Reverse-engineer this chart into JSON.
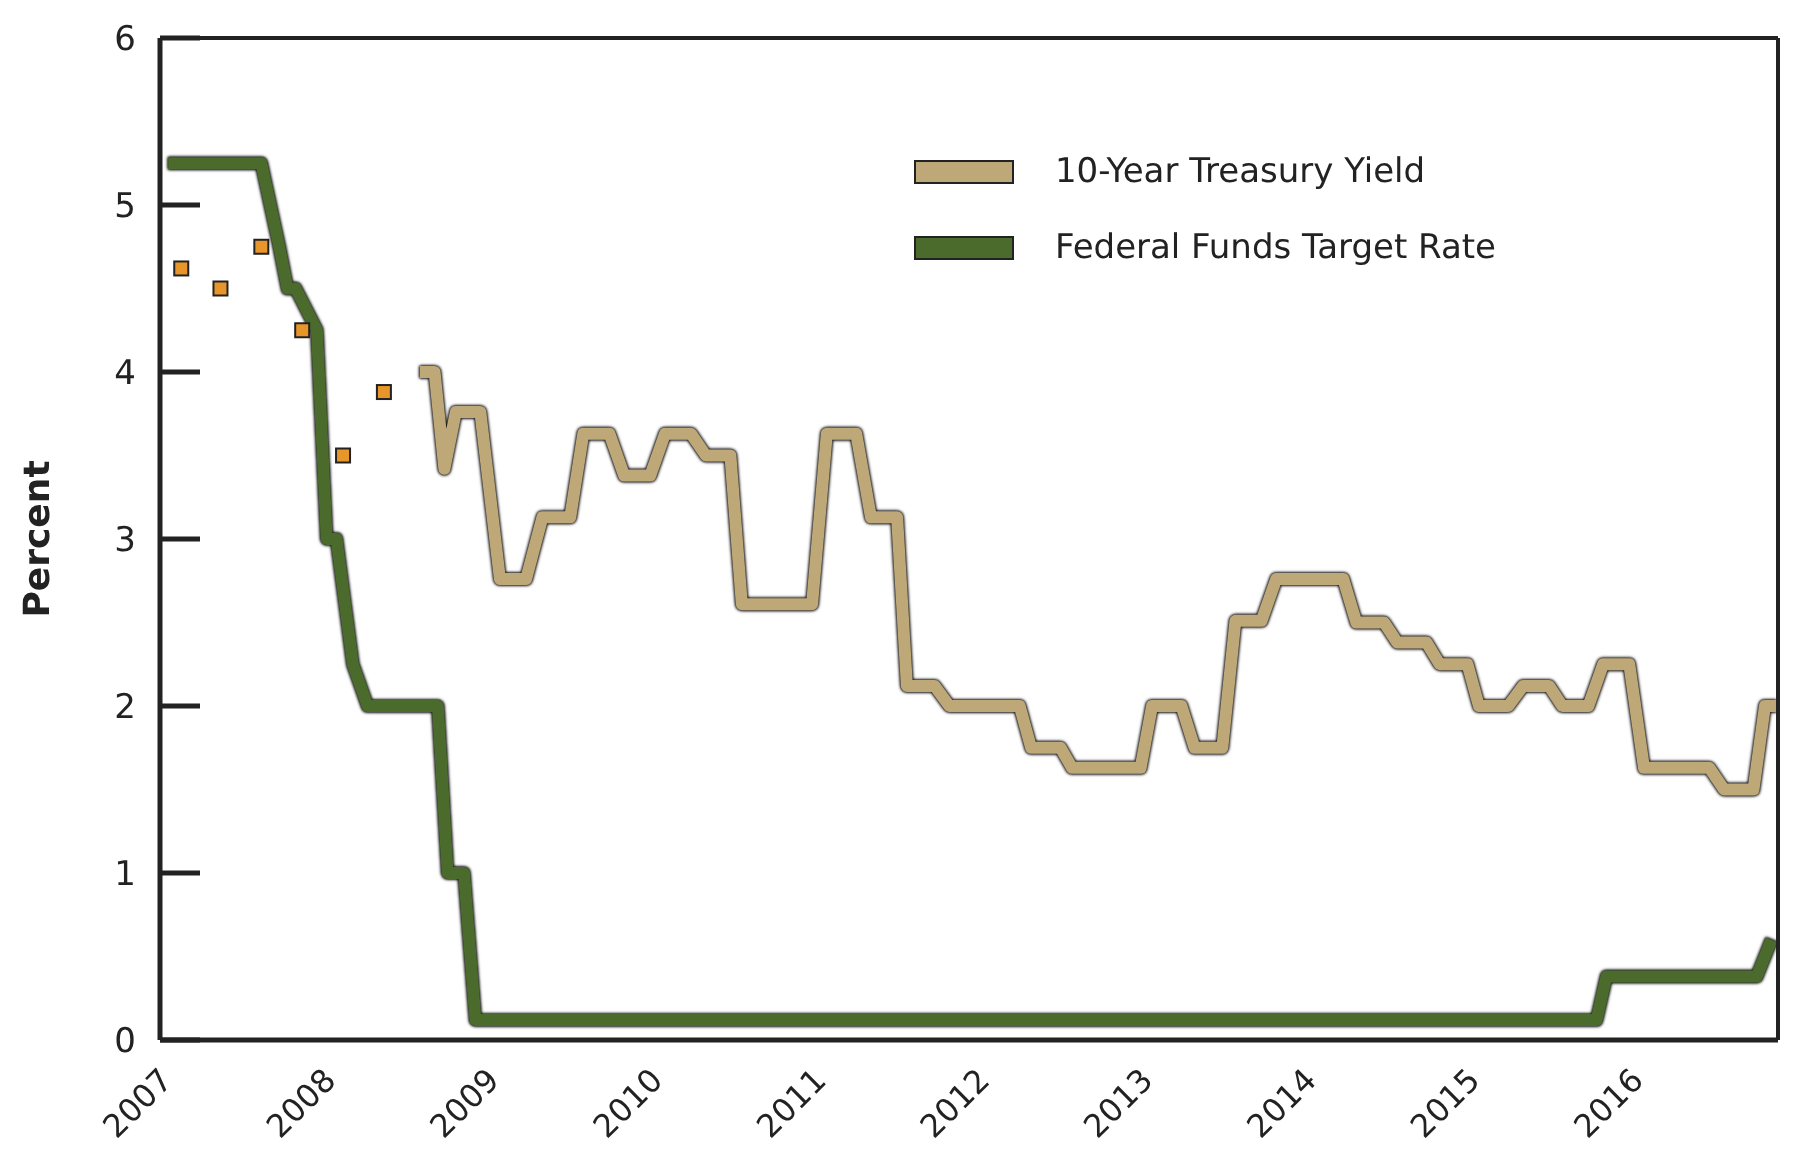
{
  "chart_data": {
    "type": "line",
    "ylabel": "Percent",
    "xlim": [
      2007,
      2016.9
    ],
    "xticks": [
      2007,
      2008,
      2009,
      2010,
      2011,
      2012,
      2013,
      2014,
      2015,
      2016
    ],
    "ylim": [
      0,
      6
    ],
    "yticks": [
      0,
      1,
      2,
      3,
      4,
      5,
      6
    ],
    "grid": false,
    "legend": "top right",
    "marker": "none",
    "line_style": "solid",
    "series": [
      {
        "name": "10-Year Treasury Yield",
        "color": "#bfa878",
        "x": [
          2008.59,
          2008.68,
          2008.74,
          2008.81,
          2008.96,
          2009.08,
          2009.24,
          2009.34,
          2009.51,
          2009.59,
          2009.75,
          2009.84,
          2010.0,
          2010.09,
          2010.25,
          2010.34,
          2010.49,
          2010.56,
          2010.99,
          2011.08,
          2011.26,
          2011.35,
          2011.51,
          2011.57,
          2011.74,
          2011.83,
          2012.26,
          2012.33,
          2012.51,
          2012.58,
          2013.0,
          2013.07,
          2013.25,
          2013.33,
          2013.5,
          2013.58,
          2013.74,
          2013.83,
          2014.24,
          2014.32,
          2014.49,
          2014.57,
          2014.75,
          2014.83,
          2015.0,
          2015.07,
          2015.25,
          2015.34,
          2015.5,
          2015.58,
          2015.74,
          2015.83,
          2015.99,
          2016.08,
          2016.48,
          2016.57,
          2016.75,
          2016.82,
          2016.89
        ],
        "values": [
          4.0,
          4.0,
          3.42,
          3.76,
          3.76,
          2.76,
          2.76,
          3.13,
          3.13,
          3.63,
          3.63,
          3.38,
          3.38,
          3.63,
          3.63,
          3.5,
          3.5,
          2.61,
          2.61,
          3.63,
          3.63,
          3.13,
          3.13,
          2.12,
          2.12,
          2.0,
          2.0,
          1.75,
          1.75,
          1.63,
          1.63,
          2.0,
          2.0,
          1.75,
          1.75,
          2.51,
          2.51,
          2.76,
          2.76,
          2.5,
          2.5,
          2.38,
          2.38,
          2.25,
          2.25,
          2.0,
          2.0,
          2.12,
          2.12,
          2.0,
          2.0,
          2.25,
          2.25,
          1.63,
          1.63,
          1.5,
          1.5,
          2.0,
          2.0
        ]
      },
      {
        "type": "scatter",
        "marker": "square",
        "color": "#e8962a",
        "x": [
          2007.13,
          2007.37,
          2007.62,
          2007.87,
          2008.12,
          2008.37
        ],
        "values": [
          4.62,
          4.5,
          4.75,
          4.25,
          3.5,
          3.88
        ]
      },
      {
        "name": "Federal Funds Target Rate",
        "color": "#4a6b2c",
        "x": [
          2007.05,
          2007.62,
          2007.73,
          2007.78,
          2007.83,
          2007.96,
          2008.02,
          2008.08,
          2008.18,
          2008.27,
          2008.7,
          2008.76,
          2008.86,
          2008.93,
          2015.79,
          2015.85,
          2016.77,
          2016.86
        ],
        "values": [
          5.25,
          5.25,
          4.75,
          4.5,
          4.5,
          4.25,
          3.0,
          3.0,
          2.25,
          2.0,
          2.0,
          1.0,
          1.0,
          0.12,
          0.12,
          0.38,
          0.38,
          0.6
        ]
      }
    ]
  }
}
